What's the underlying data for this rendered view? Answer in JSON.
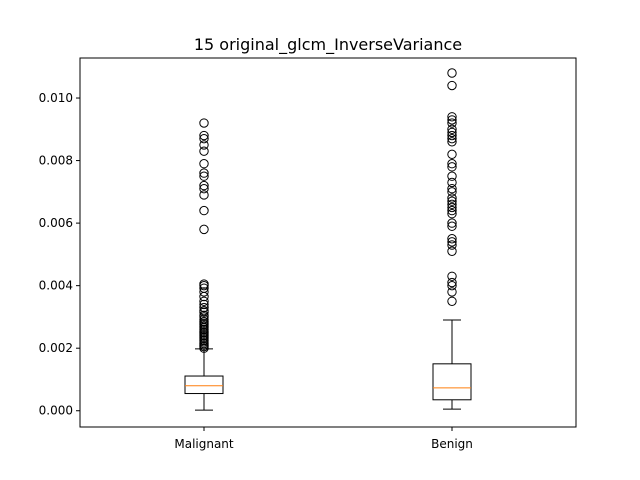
{
  "chart_data": {
    "type": "box",
    "title": "15 original_glcm_InverseVariance",
    "xlabel": "",
    "ylabel": "",
    "categories": [
      "Malignant",
      "Benign"
    ],
    "ylim": [
      -0.00052,
      0.01128
    ],
    "yticks": [
      0.0,
      0.002,
      0.004,
      0.006,
      0.008,
      0.01
    ],
    "ytick_labels": [
      "0.000",
      "0.002",
      "0.004",
      "0.006",
      "0.008",
      "0.010"
    ],
    "grid": false,
    "boxes": [
      {
        "category": "Malignant",
        "whisker_low": 2e-05,
        "q1": 0.00055,
        "median": 0.0008,
        "q3": 0.00111,
        "whisker_high": 0.00198,
        "outliers": [
          0.0092,
          0.0088,
          0.0087,
          0.0085,
          0.0083,
          0.0079,
          0.0076,
          0.0075,
          0.0072,
          0.0071,
          0.0069,
          0.0064,
          0.0058,
          0.00405,
          0.004,
          0.00392,
          0.0038,
          0.00365,
          0.0035,
          0.0034,
          0.0033,
          0.0032,
          0.00315,
          0.00305,
          0.003,
          0.00292,
          0.00285,
          0.0028,
          0.00275,
          0.0027,
          0.00265,
          0.0026,
          0.00255,
          0.0025,
          0.00245,
          0.0024,
          0.00235,
          0.0023,
          0.00225,
          0.0022,
          0.00215,
          0.0021,
          0.00205,
          0.002
        ]
      },
      {
        "category": "Benign",
        "whisker_low": 5e-05,
        "q1": 0.00035,
        "median": 0.00073,
        "q3": 0.0015,
        "whisker_high": 0.0029,
        "outliers": [
          0.0108,
          0.0104,
          0.0094,
          0.0093,
          0.0092,
          0.009,
          0.0089,
          0.0088,
          0.0087,
          0.0086,
          0.0082,
          0.0079,
          0.0078,
          0.0075,
          0.0073,
          0.0071,
          0.007,
          0.0068,
          0.0067,
          0.0066,
          0.0065,
          0.0064,
          0.0063,
          0.006,
          0.0059,
          0.0055,
          0.0054,
          0.0053,
          0.0051,
          0.0043,
          0.0041,
          0.004,
          0.0038,
          0.0035
        ]
      }
    ],
    "colors": {
      "box": "#000000",
      "median": "#ff7f0e",
      "flier": "#000000",
      "background": "#ffffff"
    }
  }
}
